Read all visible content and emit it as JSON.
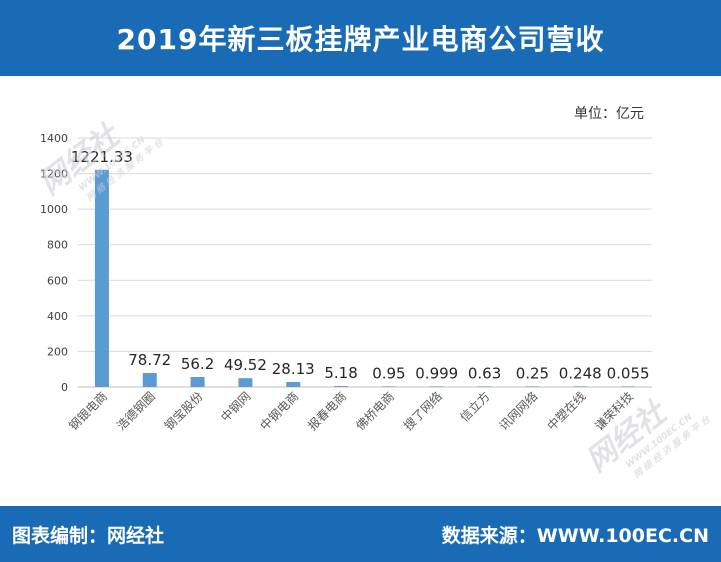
{
  "header": {
    "title": "2019年新三板挂牌产业电商公司营收"
  },
  "unit_label": "单位：亿元",
  "footer": {
    "left": "图表编制：网经社",
    "right": "数据来源：WWW.100EC.CN"
  },
  "watermarks": [
    {
      "brand": "网经社",
      "site": "WWW.100EC.CN",
      "slogan": "网 络 经 济 服 务 平 台"
    },
    {
      "brand": "网经社",
      "site": "WWW.100EC.CN",
      "slogan": "网 络 经 济 服 务 平 台"
    }
  ],
  "colors": {
    "header": "#1a6bb5",
    "bar": "#5b9bd5",
    "grid": "#d9d9d9"
  },
  "chart_data": {
    "type": "bar",
    "title": "2019年新三板挂牌产业电商公司营收",
    "ylabel": "",
    "xlabel": "",
    "ylim": [
      0,
      1400
    ],
    "yticks": [
      0,
      200,
      400,
      600,
      800,
      1000,
      1200,
      1400
    ],
    "grid": true,
    "categories": [
      "钢银电商",
      "浩德钢圈",
      "钢宝股份",
      "中钢网",
      "中钢电商",
      "报春电商",
      "佛桥电商",
      "搜了网络",
      "信立方",
      "讯网网络",
      "中塑在线",
      "谦荣科技"
    ],
    "values": [
      1221.33,
      78.72,
      56.2,
      49.52,
      28.13,
      5.18,
      0.95,
      0.999,
      0.63,
      0.25,
      0.248,
      0.055
    ],
    "value_labels": [
      "1221.33",
      "78.72",
      "56.2",
      "49.52",
      "28.13",
      "5.18",
      "0.95",
      "0.999",
      "0.63",
      "0.25",
      "0.248",
      "0.055"
    ]
  }
}
